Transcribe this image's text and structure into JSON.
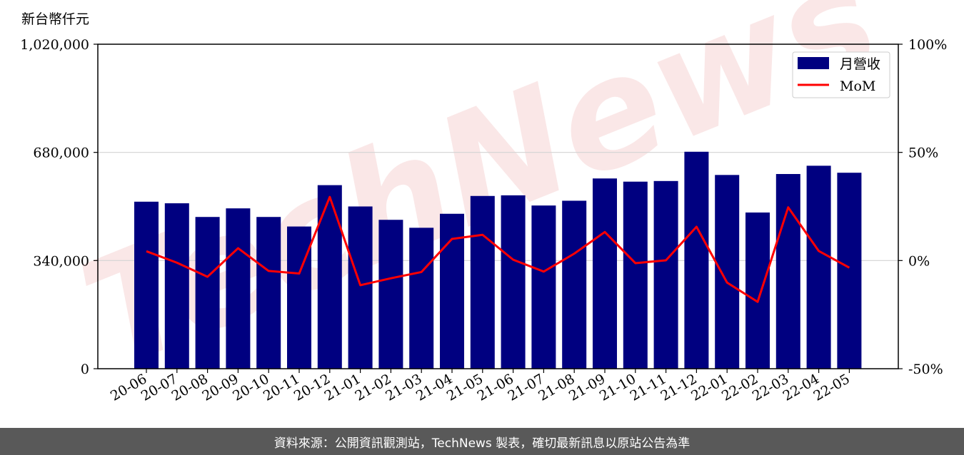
{
  "chart_data": {
    "type": "bar",
    "unit_label": "新台幣仟元",
    "categories": [
      "20-06",
      "20-07",
      "20-08",
      "20-09",
      "20-10",
      "20-11",
      "20-12",
      "21-01",
      "21-02",
      "21-03",
      "21-04",
      "21-05",
      "21-06",
      "21-07",
      "21-08",
      "21-09",
      "21-10",
      "21-11",
      "21-12",
      "22-01",
      "22-02",
      "22-03",
      "22-04",
      "22-05"
    ],
    "series": [
      {
        "name": "月營收",
        "type": "bar",
        "axis": "left",
        "color": "#000080",
        "values": [
          525000,
          520000,
          477000,
          504000,
          477000,
          447000,
          577000,
          510000,
          468000,
          443000,
          487000,
          543000,
          545000,
          513000,
          528000,
          598000,
          588000,
          590000,
          682000,
          609000,
          491000,
          612000,
          638000,
          616000
        ]
      },
      {
        "name": "MoM",
        "type": "line",
        "axis": "right",
        "color": "#ff0000",
        "values": [
          4.3,
          -1.0,
          -7.5,
          5.7,
          -4.8,
          -6.0,
          29.4,
          -11.4,
          -8.2,
          -5.3,
          10.0,
          11.9,
          0.4,
          -5.1,
          3.2,
          13.2,
          -1.2,
          0.1,
          15.6,
          -10.2,
          -19.1,
          24.6,
          4.4,
          -3.3
        ]
      }
    ],
    "ylim": [
      0,
      1020000
    ],
    "y_ticks": [
      "0",
      "340,000",
      "680,000",
      "1,020,000"
    ],
    "y2lim": [
      -50,
      100
    ],
    "y2_ticks": [
      "-50%",
      "0%",
      "50%",
      "100%"
    ],
    "grid": "horizontal",
    "legend_position": "top-right",
    "watermark": "TechNews"
  },
  "footer": {
    "text": "資料來源：公開資訊觀測站，TechNews 製表，確切最新訊息以原站公告為準"
  }
}
